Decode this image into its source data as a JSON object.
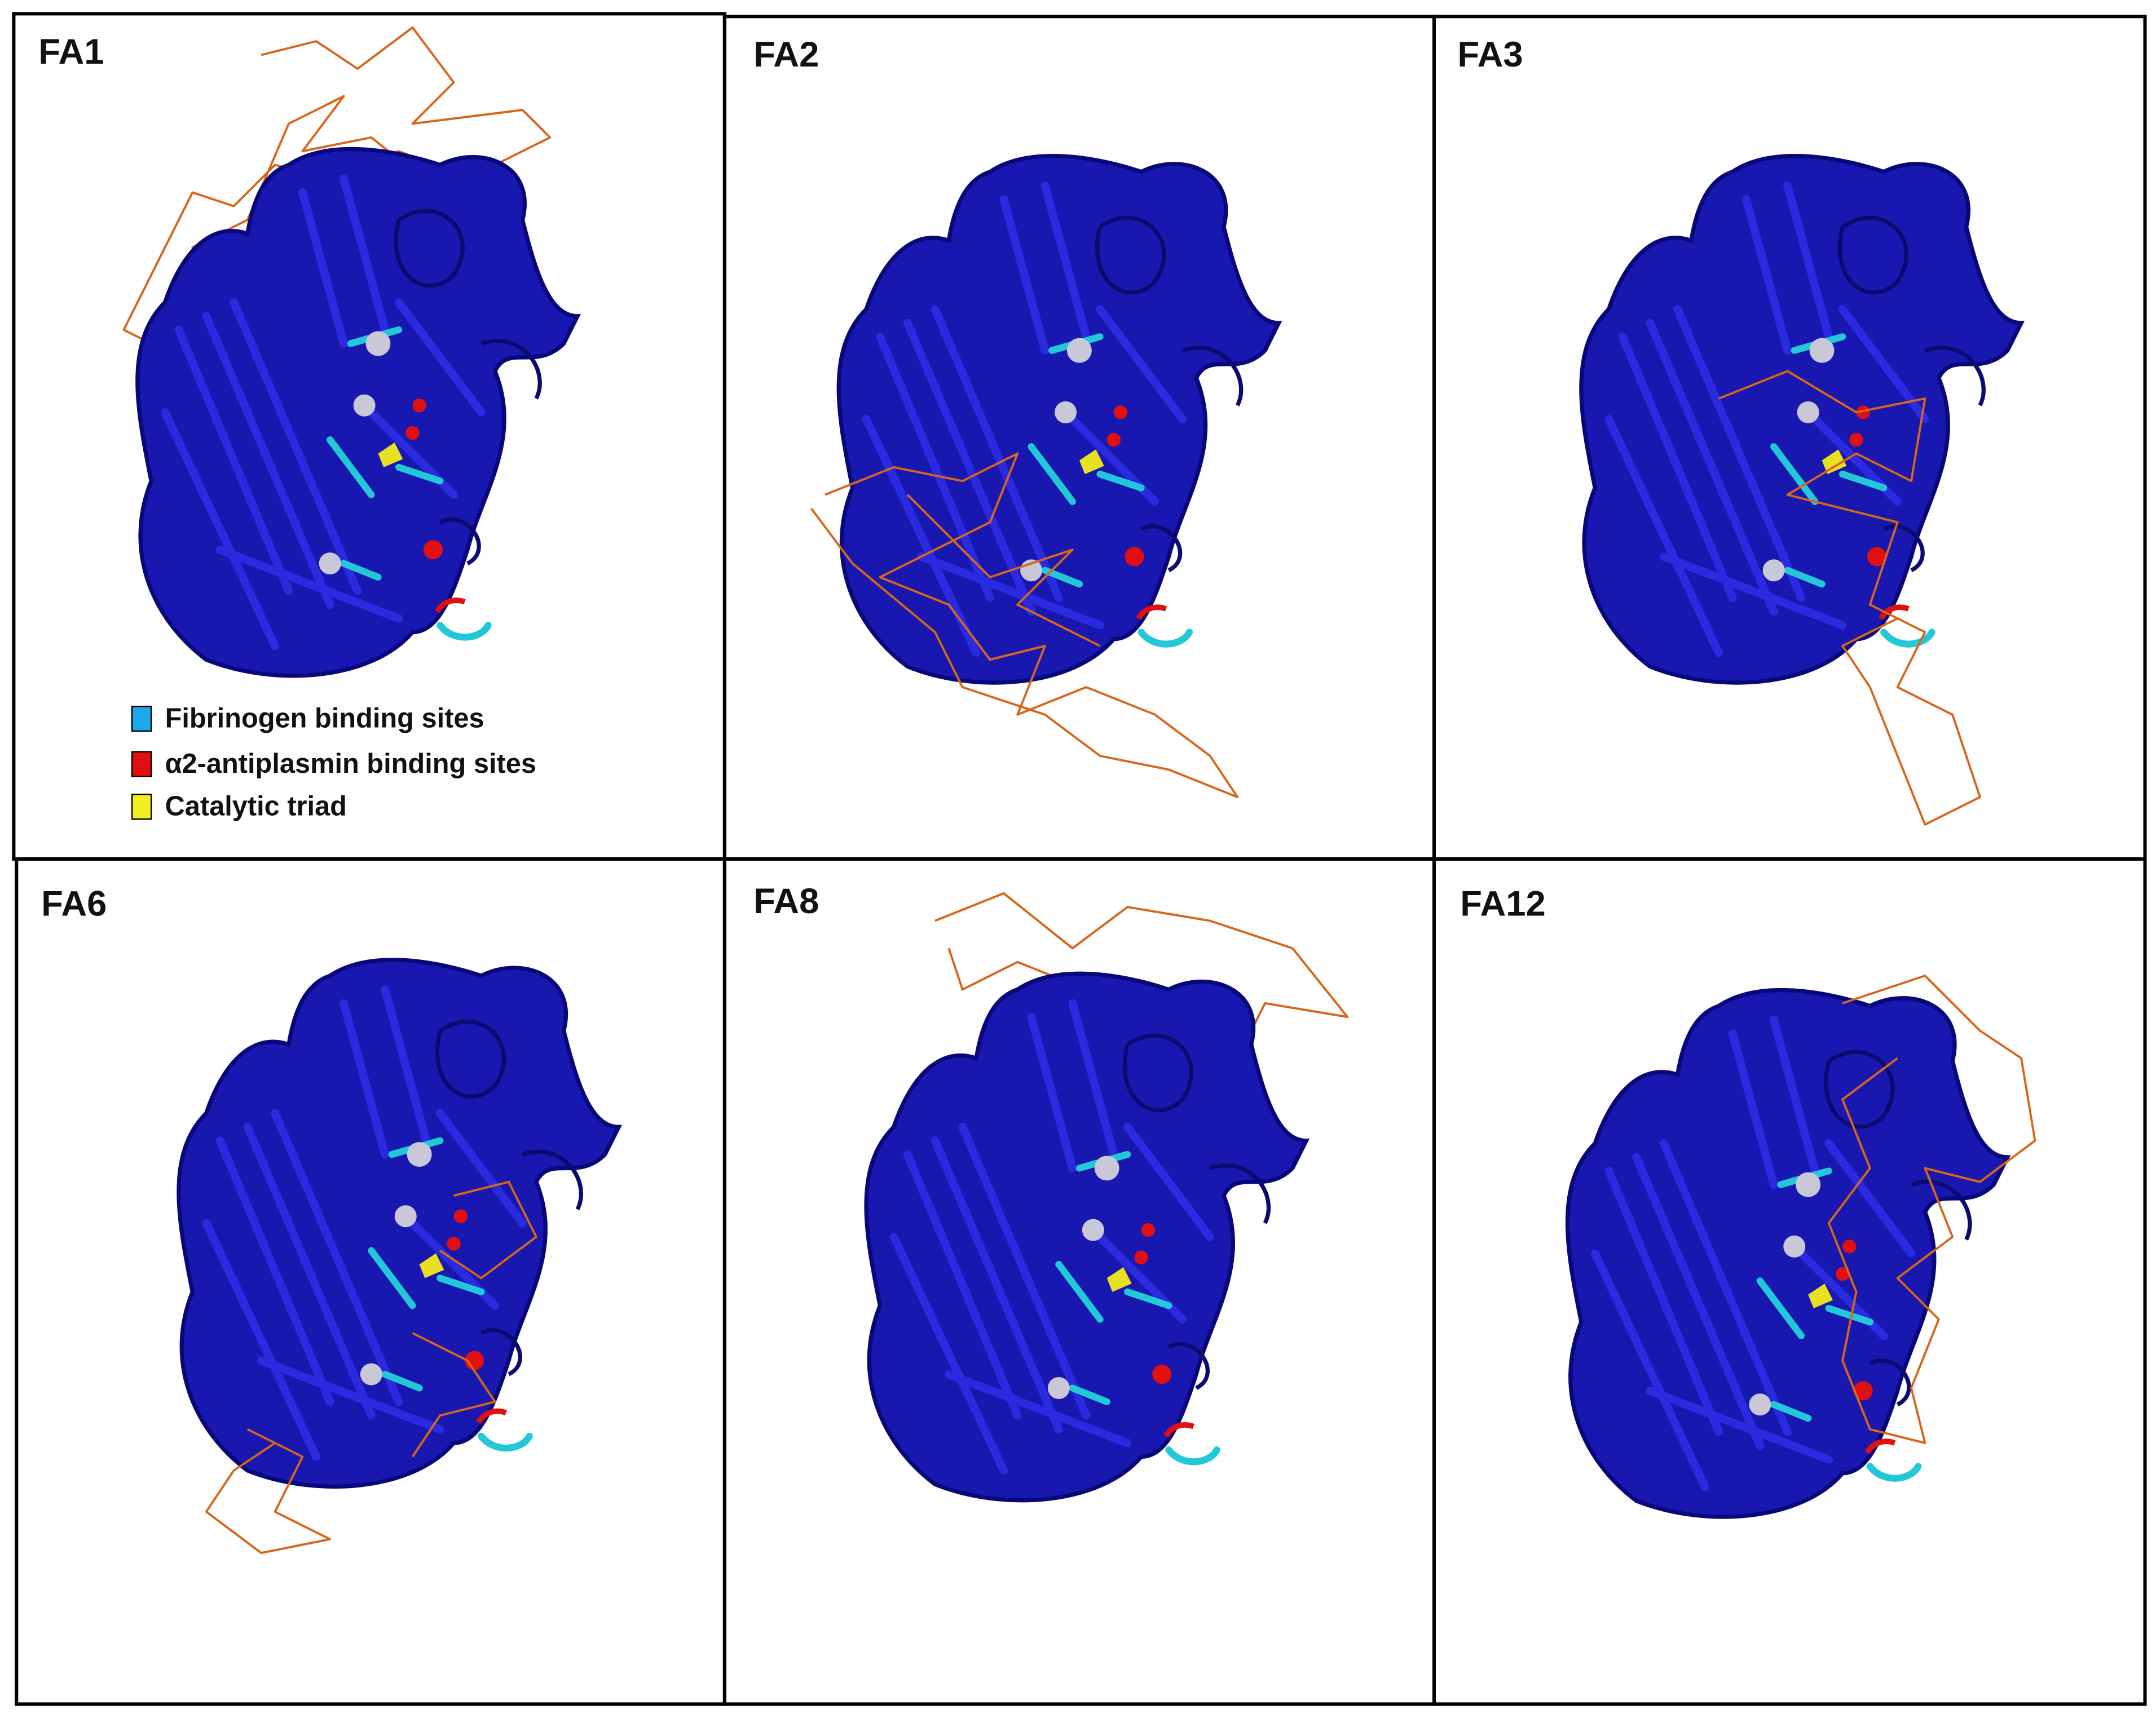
{
  "panels": [
    {
      "label": "FA1"
    },
    {
      "label": "FA2"
    },
    {
      "label": "FA3"
    },
    {
      "label": "FA6"
    },
    {
      "label": "FA8"
    },
    {
      "label": "FA12"
    }
  ],
  "legend": [
    {
      "text": "Fibrinogen binding sites"
    },
    {
      "text": "α2-antiplasmin binding sites"
    },
    {
      "text": "Catalytic triad"
    }
  ]
}
